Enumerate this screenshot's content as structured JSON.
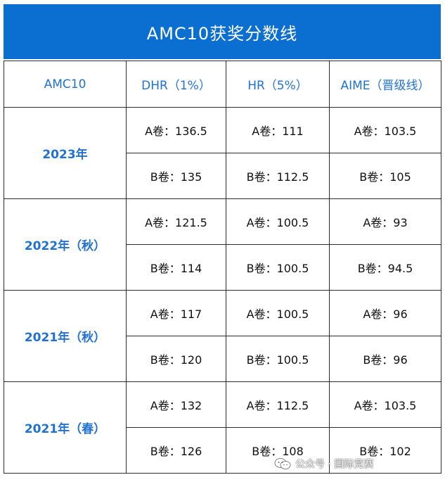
{
  "title": "AMC10获奖分数线",
  "headers": [
    "AMC10",
    "DHR（1%）",
    "HR（5%）",
    "AIME（晋级线）"
  ],
  "rows": [
    {
      "year": "2023年",
      "a": [
        "A卷：136.5",
        "A卷：111",
        "A卷：103.5"
      ],
      "b": [
        "B卷：135",
        "B卷：112.5",
        "B卷：105"
      ]
    },
    {
      "year": "2022年（秋）",
      "a": [
        "A卷：121.5",
        "A卷：100.5",
        "A卷：93"
      ],
      "b": [
        "B卷：114",
        "B卷：100.5",
        "B卷：94.5"
      ]
    },
    {
      "year": "2021年（秋）",
      "a": [
        "A卷：117",
        "A卷：100.5",
        "A卷：96"
      ],
      "b": [
        "B卷：120",
        "B卷：100.5",
        "B卷：96"
      ]
    },
    {
      "year": "2021年（春）",
      "a": [
        "A卷：132",
        "A卷：112.5",
        "A卷：103.5"
      ],
      "b": [
        "B卷：126",
        "B卷：108",
        "B卷：102"
      ]
    }
  ],
  "watermark": {
    "text": "公众号 · 国际竞赛",
    "icon": "wechat-logo-icon"
  },
  "colors": {
    "title_bg": "#0a6fd0",
    "header_text": "#1f72d4",
    "border": "#2b2b2b"
  }
}
